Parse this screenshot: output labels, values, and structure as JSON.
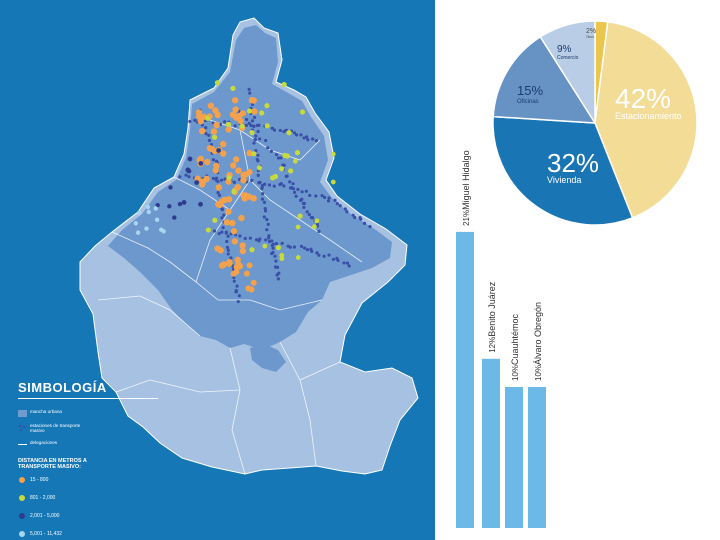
{
  "legend": {
    "title": "SIMBOLOGÍA",
    "items": [
      {
        "label": "mancha urbana",
        "icon": "square-swatch-icon",
        "color": "#6f9bd0"
      },
      {
        "label": "estaciones de transporte masivo",
        "icon": "station-dots-icon",
        "color": "#3a4fa8"
      },
      {
        "label": "delegaciones",
        "icon": "boundary-line-icon",
        "color": "#ffffff"
      }
    ],
    "distance_title": "DISTANCIA EN METROS A TRANSPORTE MASIVO:",
    "distance_ranges": [
      {
        "label": "15 - 800",
        "color": "#f5a04a"
      },
      {
        "label": "801 - 2,000",
        "color": "#c7da3c"
      },
      {
        "label": "2,001 - 5,000",
        "color": "#2e3b8f"
      },
      {
        "label": "5,001 - 11,432",
        "color": "#a8d6ef"
      }
    ]
  },
  "chart_data": [
    {
      "type": "pie",
      "slices": [
        {
          "label": "Estacionamiento",
          "percent": 42,
          "percent_label": "42%",
          "color": "#f2dc96"
        },
        {
          "label": "Vivienda",
          "percent": 32,
          "percent_label": "32%",
          "color": "#1a75b5"
        },
        {
          "label": "Oficinas",
          "percent": 15,
          "percent_label": "15%",
          "color": "#6792c4"
        },
        {
          "label": "Comercio",
          "percent": 9,
          "percent_label": "9%",
          "color": "#b9cde6"
        },
        {
          "label": "Otros",
          "percent": 2,
          "percent_label": "2%",
          "color": "#ecc54b"
        }
      ]
    },
    {
      "type": "bar",
      "categories": [
        "Miguel Hidalgo",
        "Benito Juárez",
        "Cuauhtémoc",
        "Álvaro Obregón"
      ],
      "values": [
        21,
        12,
        10,
        10
      ],
      "value_labels": [
        "21%",
        "12%",
        "10%",
        "10%"
      ],
      "color": "#6cb8e6"
    }
  ]
}
